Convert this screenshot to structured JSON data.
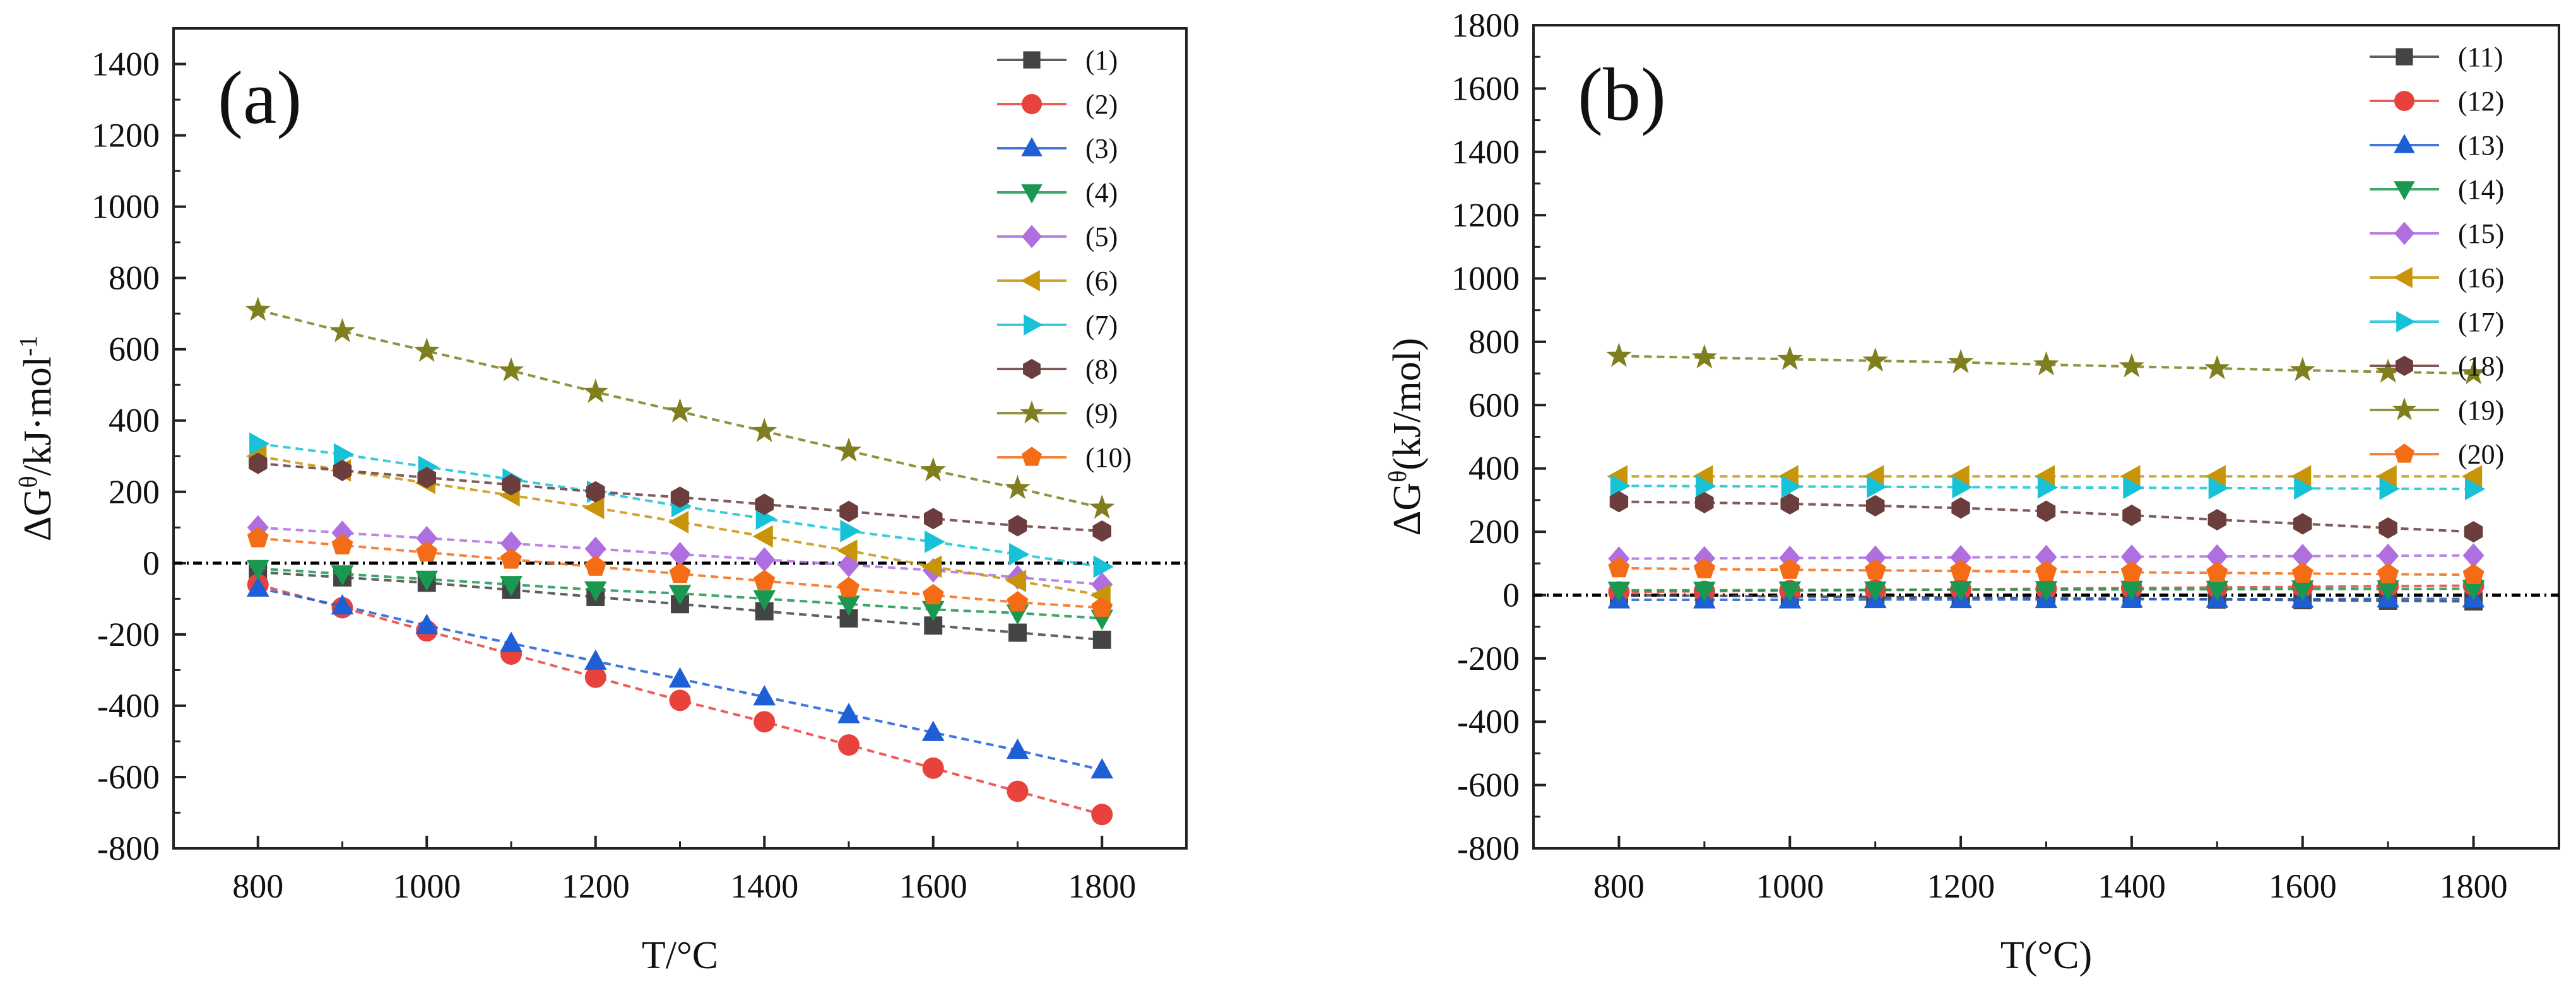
{
  "figure": {
    "reference_line": {
      "y": 0,
      "color": "#000000"
    }
  },
  "chart_data": [
    {
      "type": "line",
      "panel_label": "(a)",
      "xlabel": "T/°C",
      "ylabel": "ΔGθ/kJ·mol-1",
      "ylabel_main": "ΔG",
      "ylabel_sup1": "θ",
      "ylabel_mid": "/kJ·mol",
      "ylabel_sup2": "-1",
      "xlim": [
        700,
        1900
      ],
      "ylim": [
        -800,
        1500
      ],
      "xticks": [
        800,
        1000,
        1200,
        1400,
        1600,
        1800
      ],
      "yticks": [
        -800,
        -600,
        -400,
        -200,
        0,
        200,
        400,
        600,
        800,
        1000,
        1200,
        1400
      ],
      "legend_position": "top-right",
      "x": [
        800,
        900,
        1000,
        1100,
        1200,
        1300,
        1400,
        1500,
        1600,
        1700,
        1800
      ],
      "series": [
        {
          "name": "(1)",
          "marker": "square",
          "color": "#444444",
          "values": [
            -25,
            -40,
            -55,
            -75,
            -95,
            -115,
            -135,
            -155,
            -175,
            -195,
            -215
          ]
        },
        {
          "name": "(2)",
          "marker": "circle",
          "color": "#e8423c",
          "values": [
            -60,
            -125,
            -190,
            -255,
            -320,
            -385,
            -445,
            -510,
            -575,
            -640,
            -705
          ]
        },
        {
          "name": "(3)",
          "marker": "triangle-up",
          "color": "#1f5fd6",
          "values": [
            -70,
            -120,
            -175,
            -225,
            -275,
            -325,
            -375,
            -425,
            -475,
            -525,
            -580
          ]
        },
        {
          "name": "(4)",
          "marker": "triangle-down",
          "color": "#1a9850",
          "values": [
            -15,
            -30,
            -45,
            -60,
            -75,
            -85,
            -100,
            -115,
            -130,
            -140,
            -155
          ]
        },
        {
          "name": "(5)",
          "marker": "diamond",
          "color": "#b06fe0",
          "values": [
            100,
            85,
            70,
            55,
            40,
            25,
            10,
            -5,
            -20,
            -40,
            -60
          ]
        },
        {
          "name": "(6)",
          "marker": "triangle-left",
          "color": "#c8940a",
          "values": [
            300,
            260,
            225,
            190,
            155,
            115,
            75,
            35,
            -10,
            -50,
            -90
          ]
        },
        {
          "name": "(7)",
          "marker": "triangle-right",
          "color": "#17c2d6",
          "values": [
            335,
            305,
            270,
            235,
            200,
            160,
            125,
            90,
            60,
            25,
            -10
          ]
        },
        {
          "name": "(8)",
          "marker": "hexagon",
          "color": "#6b3d3d",
          "values": [
            280,
            260,
            240,
            220,
            200,
            185,
            165,
            145,
            125,
            105,
            90
          ]
        },
        {
          "name": "(9)",
          "marker": "star",
          "color": "#7f7f1f",
          "values": [
            710,
            650,
            595,
            540,
            480,
            425,
            370,
            315,
            260,
            210,
            155
          ]
        },
        {
          "name": "(10)",
          "marker": "pentagon",
          "color": "#f46d16",
          "values": [
            70,
            50,
            30,
            10,
            -10,
            -30,
            -50,
            -70,
            -90,
            -110,
            -125
          ]
        }
      ]
    },
    {
      "type": "line",
      "panel_label": "(b)",
      "xlabel": "T(°C)",
      "ylabel": "ΔGθ(kJ/mol)",
      "ylabel_main": "ΔG",
      "ylabel_sup1": "θ",
      "ylabel_mid": "(kJ/mol)",
      "ylabel_sup2": "",
      "xlim": [
        700,
        1900
      ],
      "ylim": [
        -800,
        1800
      ],
      "xticks": [
        800,
        1000,
        1200,
        1400,
        1600,
        1800
      ],
      "yticks": [
        -800,
        -600,
        -400,
        -200,
        0,
        200,
        400,
        600,
        800,
        1000,
        1200,
        1400,
        1600,
        1800
      ],
      "legend_position": "top-right",
      "x": [
        800,
        900,
        1000,
        1100,
        1200,
        1300,
        1400,
        1500,
        1600,
        1700,
        1800
      ],
      "series": [
        {
          "name": "(11)",
          "marker": "square",
          "color": "#444444",
          "values": [
            0,
            -2,
            -4,
            -6,
            -8,
            -10,
            -12,
            -14,
            -16,
            -18,
            -20
          ]
        },
        {
          "name": "(12)",
          "marker": "circle",
          "color": "#e8423c",
          "values": [
            10,
            12,
            14,
            16,
            18,
            20,
            22,
            24,
            26,
            28,
            30
          ]
        },
        {
          "name": "(13)",
          "marker": "triangle-up",
          "color": "#1f5fd6",
          "values": [
            -15,
            -15,
            -15,
            -14,
            -14,
            -14,
            -13,
            -13,
            -13,
            -12,
            -12
          ]
        },
        {
          "name": "(14)",
          "marker": "triangle-down",
          "color": "#1a9850",
          "values": [
            15,
            15,
            16,
            16,
            17,
            17,
            18,
            18,
            19,
            19,
            20
          ]
        },
        {
          "name": "(15)",
          "marker": "diamond",
          "color": "#b06fe0",
          "values": [
            115,
            116,
            117,
            118,
            119,
            120,
            121,
            122,
            123,
            124,
            125
          ]
        },
        {
          "name": "(16)",
          "marker": "triangle-left",
          "color": "#c8940a",
          "values": [
            375,
            375,
            375,
            375,
            375,
            375,
            375,
            375,
            375,
            375,
            375
          ]
        },
        {
          "name": "(17)",
          "marker": "triangle-right",
          "color": "#17c2d6",
          "values": [
            345,
            344,
            343,
            342,
            341,
            340,
            339,
            338,
            337,
            336,
            335
          ]
        },
        {
          "name": "(18)",
          "marker": "hexagon",
          "color": "#6b3d3d",
          "values": [
            295,
            292,
            288,
            282,
            275,
            265,
            252,
            238,
            225,
            212,
            200
          ]
        },
        {
          "name": "(19)",
          "marker": "star",
          "color": "#7f7f1f",
          "values": [
            755,
            750,
            745,
            740,
            735,
            728,
            722,
            716,
            710,
            705,
            700
          ]
        },
        {
          "name": "(20)",
          "marker": "pentagon",
          "color": "#f46d16",
          "values": [
            85,
            82,
            80,
            78,
            76,
            74,
            72,
            70,
            68,
            66,
            64
          ]
        }
      ]
    }
  ]
}
